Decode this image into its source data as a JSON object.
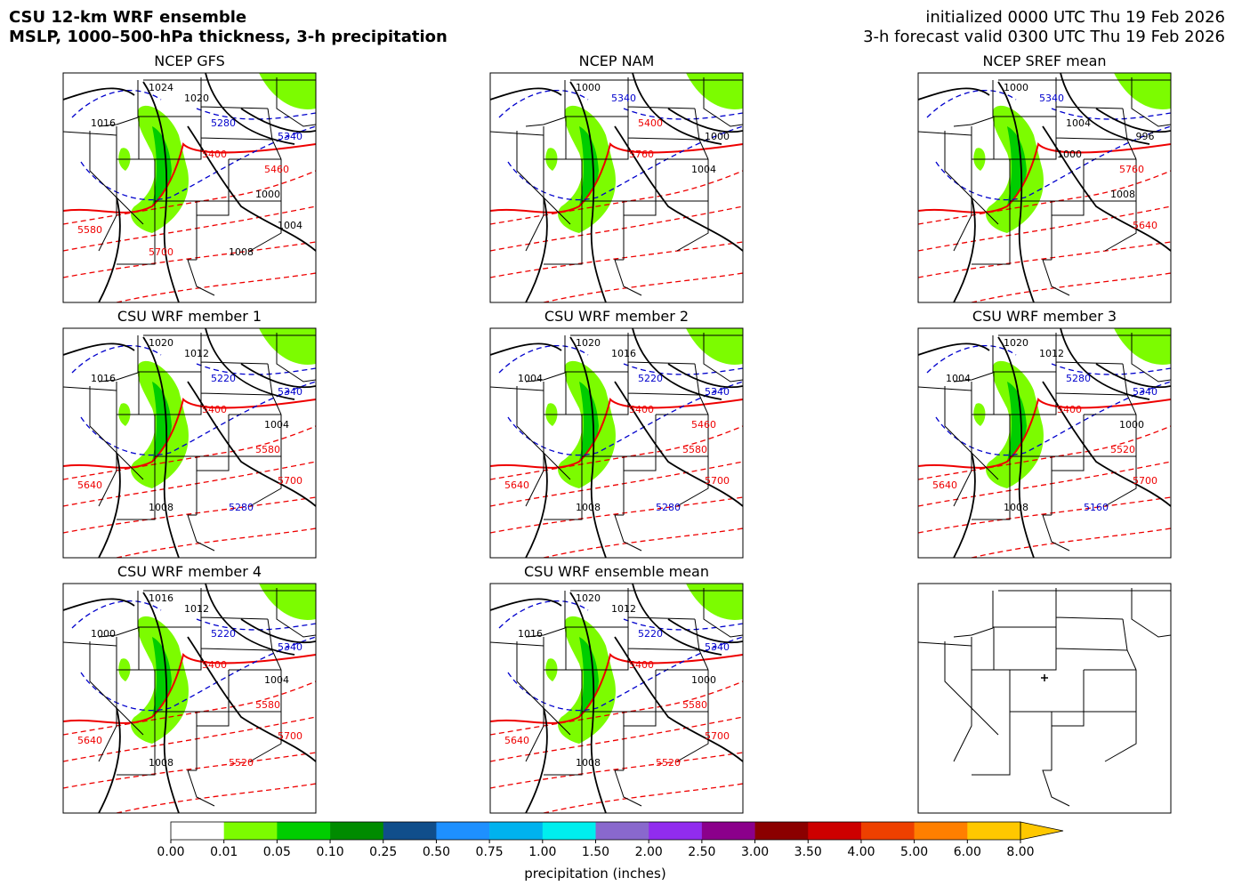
{
  "header": {
    "title": "CSU 12-km WRF ensemble",
    "subtitle": "MSLP, 1000–500-hPa thickness, 3-h precipitation",
    "init": "initialized 0000 UTC Thu 19 Feb 2026",
    "valid": "3-h forecast valid 0300 UTC Thu 19 Feb 2026"
  },
  "panels": [
    {
      "title": "NCEP GFS",
      "contour_labels": [
        "1024",
        "1020",
        "5280",
        "5340",
        "5400",
        "5460",
        "1000",
        "1004",
        "5580",
        "5700",
        "1008",
        "1016"
      ]
    },
    {
      "title": "NCEP NAM",
      "contour_labels": [
        "1000",
        "5340",
        "5400",
        "1000",
        "5760",
        "1004"
      ]
    },
    {
      "title": "NCEP SREF mean",
      "contour_labels": [
        "1000",
        "5340",
        "1004",
        "996",
        "1000",
        "5760",
        "1008",
        "5640"
      ]
    },
    {
      "title": "CSU WRF member 1",
      "contour_labels": [
        "1020",
        "1012",
        "5220",
        "5340",
        "5400",
        "1004",
        "5580",
        "5700",
        "5640",
        "1008",
        "5280",
        "1016"
      ]
    },
    {
      "title": "CSU WRF member 2",
      "contour_labels": [
        "1020",
        "1016",
        "5220",
        "5340",
        "5400",
        "5460",
        "5580",
        "5700",
        "5640",
        "1008",
        "5280",
        "1004"
      ]
    },
    {
      "title": "CSU WRF member 3",
      "contour_labels": [
        "1020",
        "1012",
        "5280",
        "5340",
        "5400",
        "1000",
        "5520",
        "5700",
        "5640",
        "1008",
        "5160",
        "1004"
      ]
    },
    {
      "title": "CSU WRF member 4",
      "contour_labels": [
        "1016",
        "1012",
        "5220",
        "5340",
        "5400",
        "1004",
        "5580",
        "5700",
        "5640",
        "1008",
        "5520",
        "1000"
      ]
    },
    {
      "title": "CSU WRF ensemble mean",
      "contour_labels": [
        "1020",
        "1012",
        "5220",
        "5340",
        "5400",
        "1000",
        "5580",
        "5700",
        "5640",
        "1008",
        "5520",
        "1016"
      ]
    }
  ],
  "colorbar": {
    "label": "precipitation (inches)",
    "levels": [
      {
        "value": 0,
        "label": "0.00"
      },
      {
        "value": 0.01,
        "label": "0.01"
      },
      {
        "value": 0.05,
        "label": "0.05"
      },
      {
        "value": 0.1,
        "label": "0.10"
      },
      {
        "value": 0.25,
        "label": "0.25"
      },
      {
        "value": 0.5,
        "label": "0.50"
      },
      {
        "value": 0.75,
        "label": "0.75"
      },
      {
        "value": 1,
        "label": "1.00"
      },
      {
        "value": 1.5,
        "label": "1.50"
      },
      {
        "value": 2,
        "label": "2.00"
      },
      {
        "value": 2.5,
        "label": "2.50"
      },
      {
        "value": 3,
        "label": "3.00"
      },
      {
        "value": 3.5,
        "label": "3.50"
      },
      {
        "value": 4,
        "label": "4.00"
      },
      {
        "value": 5,
        "label": "5.00"
      },
      {
        "value": 6,
        "label": "6.00"
      },
      {
        "value": 8,
        "label": "8.00"
      }
    ],
    "colors": [
      "#ffffff",
      "#7cfc00",
      "#00cd00",
      "#008b00",
      "#104e8b",
      "#1e90ff",
      "#00b2ee",
      "#00eeee",
      "#8968cd",
      "#912cee",
      "#8b008b",
      "#8b0000",
      "#cd0000",
      "#ee4000",
      "#ff7f00",
      "#ffc800"
    ],
    "extend_color": "#ffc800"
  }
}
